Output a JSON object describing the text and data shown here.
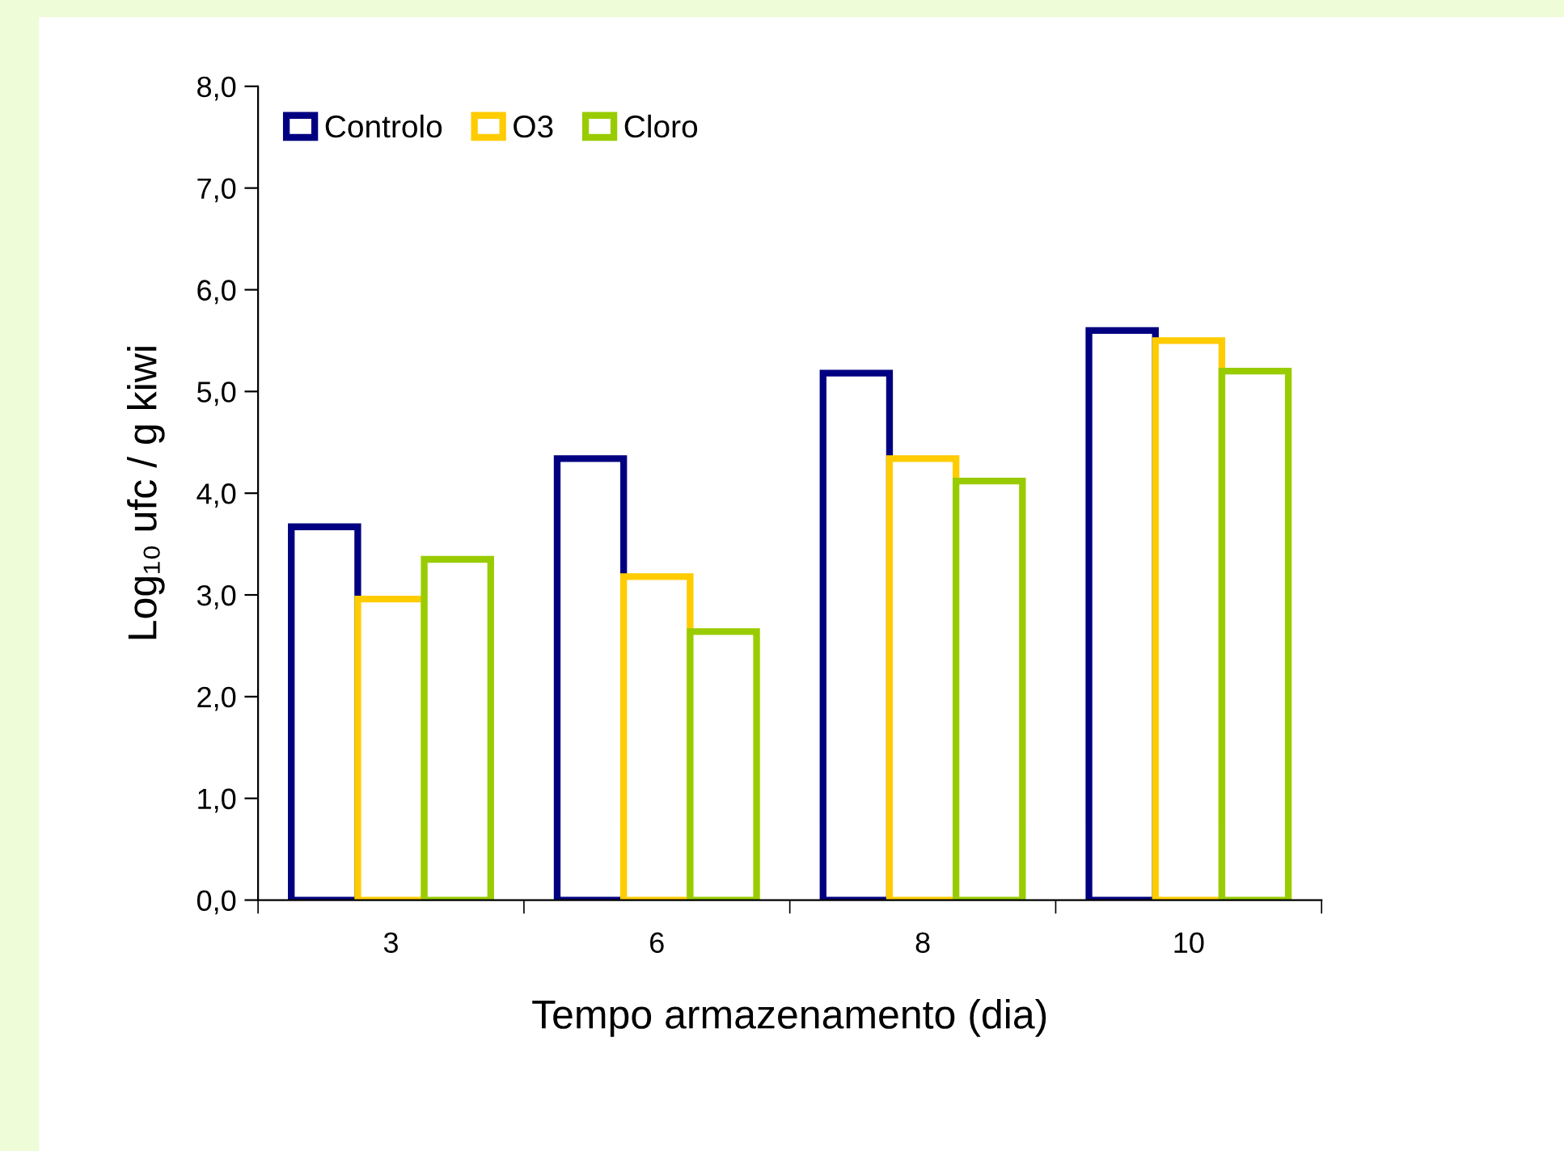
{
  "chart_data": {
    "type": "bar",
    "xlabel": "Tempo armazenamento (dia)",
    "ylabel": "Log₁₀ ufc / g kiwi",
    "categories": [
      "3",
      "6",
      "8",
      "10"
    ],
    "series": [
      {
        "name": "Controlo",
        "color": "#000080",
        "values": [
          3.67,
          4.34,
          5.18,
          5.6
        ]
      },
      {
        "name": "O3",
        "color": "#ffcc00",
        "values": [
          2.96,
          3.18,
          4.34,
          5.5
        ]
      },
      {
        "name": "Cloro",
        "color": "#99cc00",
        "values": [
          3.35,
          2.64,
          4.12,
          5.2
        ]
      }
    ],
    "ylim": [
      0,
      8
    ],
    "yticks": [
      {
        "value": 0,
        "label": "0,0"
      },
      {
        "value": 1,
        "label": "1,0"
      },
      {
        "value": 2,
        "label": "2,0"
      },
      {
        "value": 3,
        "label": "3,0"
      },
      {
        "value": 4,
        "label": "4,0"
      },
      {
        "value": 5,
        "label": "5,0"
      },
      {
        "value": 6,
        "label": "6,0"
      },
      {
        "value": 7,
        "label": "7,0"
      },
      {
        "value": 8,
        "label": "8,0"
      }
    ],
    "grid": false,
    "legend": "top left"
  }
}
